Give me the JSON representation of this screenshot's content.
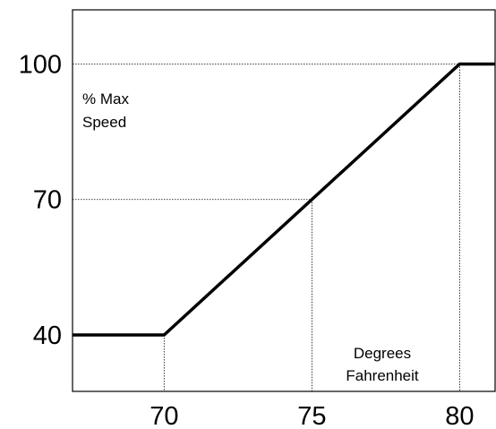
{
  "chart_data": {
    "type": "line",
    "title": "",
    "xlabel": "Degrees Fahrenheit",
    "xlabel_lines": [
      "Degrees",
      "Fahrenheit"
    ],
    "ylabel": "% Max Speed",
    "ylabel_lines": [
      "% Max",
      "Speed"
    ],
    "xlim": [
      66.9,
      81.2
    ],
    "ylim": [
      27.5,
      112.0
    ],
    "x_ticks": [
      70,
      75,
      80
    ],
    "y_ticks": [
      40,
      70,
      100
    ],
    "x_tick_labels": [
      "70",
      "75",
      "80"
    ],
    "y_tick_labels": [
      "40",
      "70",
      "100"
    ],
    "grid": false,
    "series": [
      {
        "x": [
          66.9,
          70,
          80,
          81.2
        ],
        "y": [
          40,
          40,
          100,
          100
        ]
      }
    ],
    "reference_lines": [
      {
        "x": 70,
        "y": 40
      },
      {
        "x": 75,
        "y": 70
      },
      {
        "x": 80,
        "y": 100
      }
    ],
    "line_color": "#000000"
  }
}
